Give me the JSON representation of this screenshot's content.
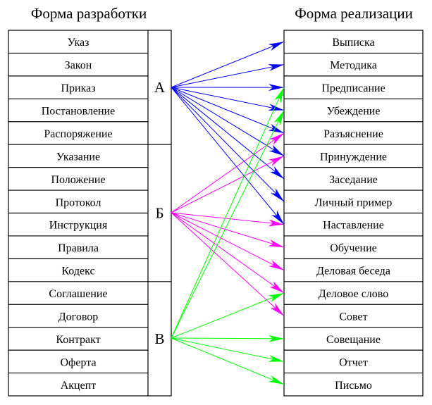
{
  "left_title": "Форма разработки",
  "right_title": "Форма реализации",
  "groups": [
    {
      "label": "А",
      "color": "#0000ff",
      "items": [
        "Указ",
        "Закон",
        "Приказ",
        "Постановление",
        "Распоряжение"
      ],
      "targets": [
        0,
        1,
        2,
        3,
        4,
        5,
        6,
        7,
        8
      ]
    },
    {
      "label": "Б",
      "color": "#ff00ff",
      "items": [
        "Указание",
        "Положение",
        "Протокол",
        "Инструкция",
        "Правила",
        "Кодекс"
      ],
      "targets": [
        4,
        5,
        8,
        9,
        10,
        11,
        12
      ]
    },
    {
      "label": "В",
      "color": "#00ff00",
      "items": [
        "Соглашение",
        "Договор",
        "Контракт",
        "Оферта",
        "Акцепт"
      ],
      "targets": [
        2,
        3,
        11,
        13,
        14,
        15
      ]
    }
  ],
  "right_items": [
    "Выписка",
    "Методика",
    "Предписание",
    "Убеждение",
    "Разъяснение",
    "Принуждение",
    "Заседание",
    "Личный пример",
    "Наставление",
    "Обучение",
    "Деловая беседа",
    "Деловое слово",
    "Совет",
    "Совещание",
    "Отчет",
    "Письмо"
  ]
}
